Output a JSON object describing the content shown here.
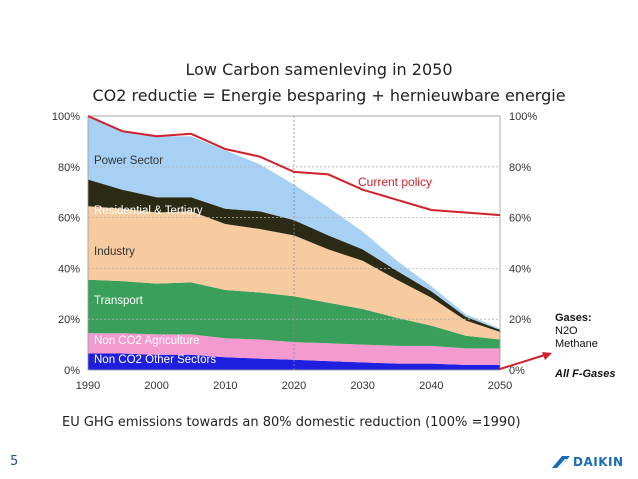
{
  "chart_data": {
    "type": "area",
    "title": "Low Carbon samenleving in 2050",
    "subtitle": "CO2 reductie = Energie besparing + hernieuwbare energie",
    "x": [
      1990,
      1995,
      2000,
      2005,
      2010,
      2015,
      2020,
      2025,
      2030,
      2035,
      2040,
      2045,
      2050
    ],
    "x_ticks": [
      "1990",
      "2000",
      "2010",
      "2020",
      "2030",
      "2040",
      "2050"
    ],
    "y_ticks": [
      "0%",
      "20%",
      "40%",
      "60%",
      "80%",
      "100%"
    ],
    "y_ticks_right": [
      "0%",
      "20%",
      "40%",
      "60%",
      "80%",
      "100%"
    ],
    "ylim": [
      0,
      100
    ],
    "xlim": [
      1990,
      2050
    ],
    "grid": true,
    "reference_year": 2020,
    "series": [
      {
        "name": "Non CO2 Other Sectors",
        "color": "#1f1fe0",
        "values": [
          6.5,
          6.5,
          6,
          6,
          5,
          4.5,
          4,
          3.5,
          3,
          2.5,
          2.5,
          2,
          2
        ]
      },
      {
        "name": "Non CO2 Agriculture",
        "color": "#f49ad0",
        "values": [
          8,
          8,
          8,
          8,
          7.5,
          7.5,
          7,
          7,
          7,
          7,
          7,
          6.5,
          6.5
        ]
      },
      {
        "name": "Transport",
        "color": "#3a9f5a",
        "values": [
          21,
          20.5,
          20,
          20.5,
          19,
          18.5,
          18,
          16,
          14,
          11,
          8,
          5,
          3.5
        ]
      },
      {
        "name": "Industry",
        "color": "#f7caa0",
        "values": [
          29,
          28.5,
          28,
          28,
          26,
          25,
          24,
          21,
          19,
          15,
          11,
          6,
          3
        ]
      },
      {
        "name": "Residential & Tertiary",
        "color": "#2b2a14",
        "values": [
          10.5,
          7.5,
          6,
          5.5,
          6,
          7,
          6,
          5.5,
          4.5,
          3.5,
          2.5,
          1.5,
          0.8
        ]
      },
      {
        "name": "Power Sector",
        "color": "#a6d0f4",
        "values": [
          25,
          23,
          24,
          24,
          23,
          18.5,
          14,
          11,
          7,
          4,
          2,
          1,
          0.5
        ]
      }
    ],
    "line": {
      "name": "Current policy",
      "color": "#d0202a",
      "values": [
        100,
        94,
        92,
        93,
        87,
        84,
        78,
        77,
        71,
        67,
        63,
        62,
        61
      ]
    },
    "annotations": {
      "gases_header": "Gases:",
      "gases_1": "N2O",
      "gases_2": "Methane",
      "fgases": "All F-Gases"
    },
    "caption": "EU GHG emissions towards an 80% domestic reduction (100% =1990)"
  },
  "page_number": "5",
  "logo": {
    "name": "DAIKIN",
    "icon": "daikin-logo-icon"
  }
}
